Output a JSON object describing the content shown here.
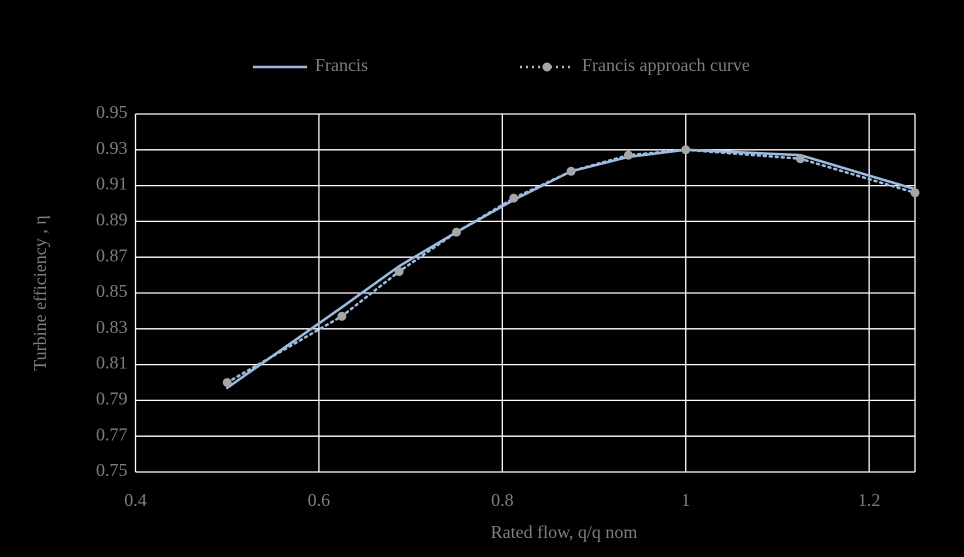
{
  "chart_data": {
    "type": "line",
    "x_label": "Rated flow, q/q nom",
    "y_label": "Turbine efficiency , η",
    "x": [
      0.5,
      0.625,
      0.6875,
      0.75,
      0.8125,
      0.875,
      0.9375,
      1,
      1.125,
      1.25
    ],
    "series": [
      {
        "name": "Francis",
        "color": "#9dbbe0",
        "style": "solid",
        "marker": false,
        "values": [
          0.797,
          0.842,
          0.865,
          0.884,
          0.902,
          0.918,
          0.926,
          0.93,
          0.927,
          0.908
        ]
      },
      {
        "name": "Francis approach curve",
        "color": "#9dbbe0",
        "style": "dotted",
        "marker": true,
        "marker_color": "#a6a6a6",
        "values": [
          0.8,
          0.837,
          0.862,
          0.884,
          0.903,
          0.918,
          0.927,
          0.93,
          0.925,
          0.906
        ]
      }
    ],
    "xlim": [
      0.4,
      1.25
    ],
    "xticks": [
      0.4,
      0.6,
      0.8,
      1,
      1.2
    ],
    "ylim": [
      0.75,
      0.95
    ],
    "yticks": [
      0.75,
      0.77,
      0.79,
      0.81,
      0.83,
      0.85,
      0.87,
      0.89,
      0.91,
      0.93,
      0.95
    ],
    "grid": true,
    "legend": "top"
  }
}
